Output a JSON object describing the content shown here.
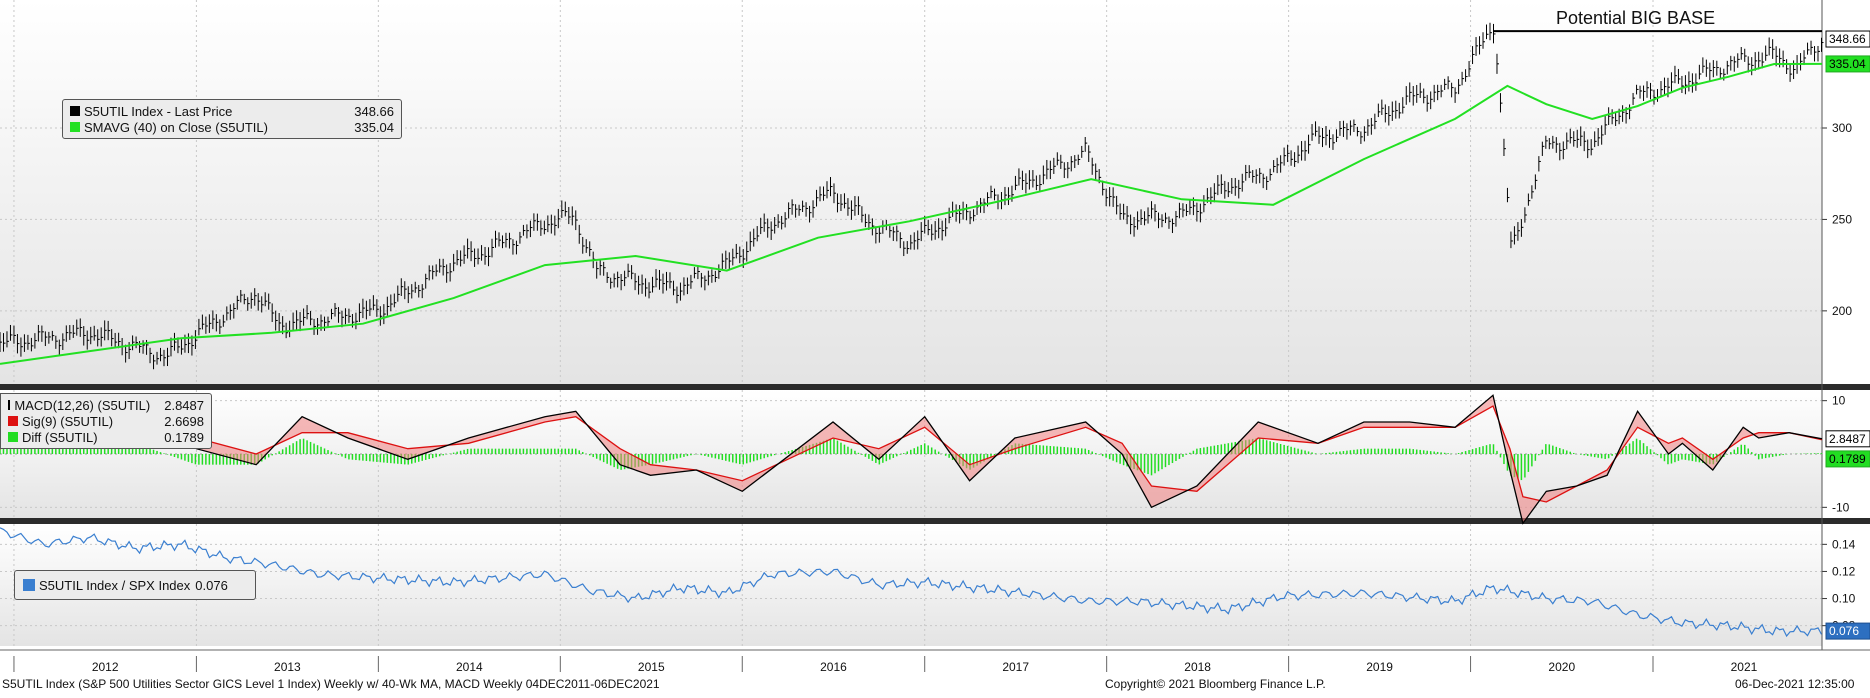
{
  "chart_data": {
    "type": "line",
    "title": "S5UTIL Index (S&P 500 Utilities Sector GICS Level 1 Index) Weekly w/ 40-Wk MA, MACD  Weekly 04DEC2011-06DEC2021",
    "footer_center": "Copyright© 2021 Bloomberg Finance L.P.",
    "footer_right": "06-Dec-2021 12:35:00",
    "x_range": [
      "2011-12-04",
      "2021-12-06"
    ],
    "x_tick_labels": [
      "2012",
      "2013",
      "2014",
      "2015",
      "2016",
      "2017",
      "2018",
      "2019",
      "2020",
      "2021"
    ],
    "annotation": {
      "text": "Potential BIG BASE",
      "start": "2020-02-15",
      "level": 353
    },
    "price_panel": {
      "ylim": [
        160,
        370
      ],
      "yticks": [
        200,
        250,
        300
      ],
      "grid": true,
      "legend_position": "top-left",
      "series": [
        {
          "name": "S5UTIL Index - Last Price",
          "value_label": "348.66",
          "last": 348.66,
          "color": "#000000",
          "style": "ohlc-bars",
          "x": [
            "2011-12-04",
            "2012-06-01",
            "2012-11-01",
            "2013-05-01",
            "2013-06-15",
            "2014-01-01",
            "2014-06-01",
            "2014-08-01",
            "2014-12-01",
            "2015-01-28",
            "2015-03-15",
            "2015-06-15",
            "2015-09-01",
            "2015-12-01",
            "2016-03-01",
            "2016-07-01",
            "2016-09-01",
            "2016-12-01",
            "2017-03-01",
            "2017-06-01",
            "2017-09-01",
            "2017-11-20",
            "2018-02-01",
            "2018-06-01",
            "2018-09-01",
            "2018-12-01",
            "2019-03-01",
            "2019-06-01",
            "2019-09-01",
            "2019-12-01",
            "2020-02-18",
            "2020-03-23",
            "2020-06-01",
            "2020-09-01",
            "2020-12-01",
            "2021-03-01",
            "2021-06-01",
            "2021-09-01",
            "2021-10-15",
            "2021-12-06"
          ],
          "y": [
            182,
            188,
            175,
            210,
            192,
            200,
            227,
            232,
            248,
            252,
            222,
            215,
            213,
            225,
            248,
            265,
            250,
            237,
            251,
            263,
            275,
            287,
            250,
            252,
            268,
            277,
            295,
            300,
            316,
            322,
            357,
            232,
            292,
            292,
            318,
            325,
            335,
            340,
            332,
            348.66
          ]
        },
        {
          "name": "SMAVG (40)  on Close (S5UTIL)",
          "value_label": "335.04",
          "last": 335.04,
          "color": "#22e022",
          "style": "line",
          "x": [
            "2011-12-04",
            "2012-06-01",
            "2012-12-01",
            "2013-06-01",
            "2013-12-01",
            "2014-06-01",
            "2014-12-01",
            "2015-06-01",
            "2015-12-01",
            "2016-06-01",
            "2016-12-01",
            "2017-06-01",
            "2017-12-01",
            "2018-06-01",
            "2018-12-01",
            "2019-06-01",
            "2019-12-01",
            "2020-03-15",
            "2020-06-01",
            "2020-09-01",
            "2020-12-01",
            "2021-03-01",
            "2021-06-01",
            "2021-09-01",
            "2021-12-06"
          ],
          "y": [
            171,
            178,
            185,
            188,
            193,
            207,
            225,
            230,
            222,
            240,
            249,
            260,
            272,
            261,
            258,
            283,
            305,
            323,
            313,
            305,
            312,
            322,
            328,
            335,
            335.04
          ]
        }
      ]
    },
    "macd_panel": {
      "ylim": [
        -12,
        12
      ],
      "yticks": [
        10,
        -10
      ],
      "legend_position": "top-left",
      "series": [
        {
          "name": "MACD(12,26) (S5UTIL)",
          "value_label": "2.8487",
          "last": 2.8487,
          "color": "#000000",
          "x": [
            "2011-12-04",
            "2012-04-01",
            "2012-08-01",
            "2012-10-01",
            "2013-01-01",
            "2013-05-01",
            "2013-08-01",
            "2013-11-01",
            "2014-03-01",
            "2014-07-01",
            "2014-12-01",
            "2015-02-01",
            "2015-05-01",
            "2015-07-01",
            "2015-10-01",
            "2016-01-01",
            "2016-07-01",
            "2016-10-01",
            "2017-01-01",
            "2017-04-01",
            "2017-07-01",
            "2017-11-20",
            "2018-02-01",
            "2018-04-01",
            "2018-07-01",
            "2018-11-01",
            "2019-03-01",
            "2019-06-01",
            "2019-09-01",
            "2019-12-01",
            "2020-02-15",
            "2020-03-20",
            "2020-04-15",
            "2020-06-01",
            "2020-08-01",
            "2020-10-01",
            "2020-12-01",
            "2021-02-01",
            "2021-03-01",
            "2021-05-01",
            "2021-07-01",
            "2021-08-01",
            "2021-10-01",
            "2021-12-06"
          ],
          "y": [
            2,
            5,
            8,
            9,
            1,
            -2,
            7,
            3,
            -1,
            3,
            7,
            8,
            -2,
            -4,
            -3,
            -7,
            6,
            -1,
            7,
            -5,
            3,
            6,
            0,
            -10,
            -6,
            6,
            2,
            6,
            6,
            5,
            11,
            -3,
            -13,
            -7,
            -6,
            -4,
            8,
            0,
            2,
            -3,
            5,
            3,
            4,
            2.8487
          ]
        },
        {
          "name": "Sig(9) (S5UTIL)",
          "value_label": "2.6698",
          "last": 2.6698,
          "color": "#dd1111",
          "x": [
            "2011-12-04",
            "2012-04-01",
            "2012-08-01",
            "2012-10-01",
            "2013-01-01",
            "2013-05-01",
            "2013-08-01",
            "2013-11-01",
            "2014-03-01",
            "2014-07-01",
            "2014-12-01",
            "2015-02-01",
            "2015-05-01",
            "2015-07-01",
            "2015-10-01",
            "2016-01-01",
            "2016-07-01",
            "2016-10-01",
            "2017-01-01",
            "2017-04-01",
            "2017-07-01",
            "2017-11-20",
            "2018-02-01",
            "2018-04-01",
            "2018-07-01",
            "2018-11-01",
            "2019-03-01",
            "2019-06-01",
            "2019-09-01",
            "2019-12-01",
            "2020-02-15",
            "2020-03-20",
            "2020-04-15",
            "2020-06-01",
            "2020-08-01",
            "2020-10-01",
            "2020-12-01",
            "2021-02-01",
            "2021-03-01",
            "2021-05-01",
            "2021-07-01",
            "2021-08-01",
            "2021-10-01",
            "2021-12-06"
          ],
          "y": [
            1,
            4,
            7,
            8,
            3,
            0,
            4,
            4,
            1,
            2,
            6,
            7,
            1,
            -2,
            -3,
            -5,
            3,
            1,
            5,
            -2,
            1,
            5,
            2,
            -6,
            -7,
            3,
            2,
            5,
            5,
            5,
            9,
            1,
            -8,
            -9,
            -6,
            -3,
            5,
            2,
            3,
            -1,
            3,
            4,
            4,
            2.6698
          ]
        },
        {
          "name": "Diff (S5UTIL)",
          "value_label": "0.1789",
          "last": 0.1789,
          "color": "#22dd22",
          "style": "histogram",
          "x": [
            "2011-12-04",
            "2012-04-01",
            "2012-08-01",
            "2012-10-01",
            "2013-01-01",
            "2013-05-01",
            "2013-08-01",
            "2013-11-01",
            "2014-03-01",
            "2014-07-01",
            "2014-12-01",
            "2015-02-01",
            "2015-05-01",
            "2015-07-01",
            "2015-10-01",
            "2016-01-01",
            "2016-07-01",
            "2016-10-01",
            "2017-01-01",
            "2017-04-01",
            "2017-07-01",
            "2017-11-20",
            "2018-02-01",
            "2018-04-01",
            "2018-07-01",
            "2018-11-01",
            "2019-03-01",
            "2019-06-01",
            "2019-09-01",
            "2019-12-01",
            "2020-02-15",
            "2020-03-20",
            "2020-04-15",
            "2020-06-01",
            "2020-08-01",
            "2020-10-01",
            "2020-12-01",
            "2021-02-01",
            "2021-03-01",
            "2021-05-01",
            "2021-07-01",
            "2021-08-01",
            "2021-10-01",
            "2021-12-06"
          ],
          "y": [
            1,
            1,
            1,
            1,
            -2,
            -2,
            3,
            -1,
            -2,
            1,
            1,
            1,
            -3,
            -2,
            0,
            -2,
            3,
            -2,
            2,
            -3,
            2,
            1,
            -2,
            -4,
            1,
            3,
            0,
            1,
            1,
            0,
            2,
            -4,
            -5,
            2,
            0,
            -1,
            3,
            -2,
            -1,
            -2,
            2,
            -1,
            0,
            0.1789
          ]
        }
      ]
    },
    "ratio_panel": {
      "ylim": [
        0.065,
        0.155
      ],
      "yticks": [
        0.14,
        0.12,
        0.1,
        0.08
      ],
      "legend_position": "left",
      "series": [
        {
          "name": "S5UTIL Index / SPX Index",
          "value_label": "0.076",
          "last": 0.076,
          "color": "#3a7fd0",
          "x": [
            "2011-12-04",
            "2012-03-01",
            "2012-06-01",
            "2012-09-01",
            "2012-12-01",
            "2013-03-01",
            "2013-06-01",
            "2013-09-01",
            "2014-01-01",
            "2014-06-01",
            "2014-12-01",
            "2015-03-01",
            "2015-06-01",
            "2015-09-01",
            "2015-12-01",
            "2016-03-01",
            "2016-07-01",
            "2016-10-01",
            "2017-01-01",
            "2017-06-01",
            "2017-12-01",
            "2018-03-01",
            "2018-06-01",
            "2018-09-01",
            "2018-12-24",
            "2019-06-01",
            "2019-12-01",
            "2020-02-15",
            "2020-06-01",
            "2020-09-01",
            "2020-12-01",
            "2021-03-01",
            "2021-06-01",
            "2021-09-01",
            "2021-12-06"
          ],
          "y": [
            0.15,
            0.14,
            0.145,
            0.137,
            0.14,
            0.13,
            0.125,
            0.118,
            0.115,
            0.112,
            0.118,
            0.106,
            0.1,
            0.108,
            0.104,
            0.118,
            0.12,
            0.11,
            0.112,
            0.106,
            0.098,
            0.098,
            0.095,
            0.092,
            0.102,
            0.104,
            0.098,
            0.108,
            0.1,
            0.098,
            0.088,
            0.082,
            0.08,
            0.076,
            0.076
          ]
        }
      ]
    }
  }
}
